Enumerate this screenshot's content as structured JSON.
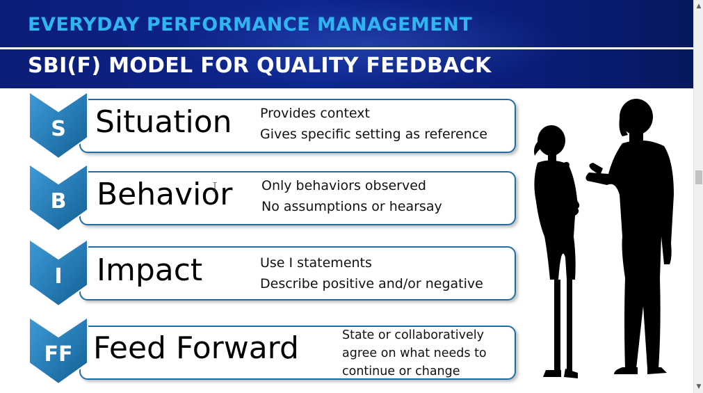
{
  "header": {
    "title": "EVERYDAY PERFORMANCE MANAGEMENT",
    "subtitle": "SBI(F) MODEL FOR QUALITY FEEDBACK"
  },
  "rows": [
    {
      "letter": "S",
      "term": "Situation",
      "desc": [
        "Provides context",
        "Gives specific setting as reference"
      ]
    },
    {
      "letter": "B",
      "term": "Behavior",
      "desc": [
        "Only behaviors observed",
        "No assumptions or hearsay"
      ]
    },
    {
      "letter": "I",
      "term": "Impact",
      "desc": [
        "Use I statements",
        "Describe positive and/or negative"
      ]
    },
    {
      "letter": "FF",
      "term": "Feed Forward",
      "desc": [
        "State or collaboratively",
        "agree on what needs to",
        "continue or change"
      ]
    }
  ],
  "colors": {
    "header_bg": "#0d2691",
    "title": "#2fb6f2",
    "box_border": "#1b6ea3",
    "chevron": "#1e7ab8"
  },
  "icons": {
    "chevron": "down-chevron-icon",
    "people": "two-people-silhouette-icon",
    "scroll_up": "scroll-up-arrow-icon",
    "scroll_down": "scroll-down-arrow-icon"
  }
}
